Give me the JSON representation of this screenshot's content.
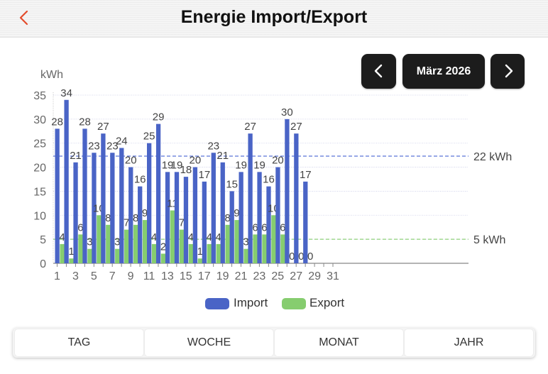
{
  "header": {
    "title": "Energie Import/Export"
  },
  "nav": {
    "month": "März 2026"
  },
  "colors": {
    "import": "#4a64c6",
    "export": "#86cd6f",
    "accent": "#e34c2c",
    "import_ref": "#5b74d6",
    "export_ref": "#8dd07a"
  },
  "legend": {
    "import_label": "Import",
    "export_label": "Export"
  },
  "tabs": [
    "TAG",
    "WOCHE",
    "MONAT",
    "JAHR"
  ],
  "chart_data": {
    "type": "bar",
    "ylabel": "kWh",
    "ylim": [
      0,
      35
    ],
    "yticks": [
      0,
      5,
      10,
      15,
      20,
      25,
      30,
      35
    ],
    "xlim": [
      1,
      31
    ],
    "xticks": [
      1,
      3,
      5,
      7,
      9,
      11,
      13,
      15,
      17,
      19,
      21,
      23,
      25,
      27,
      29,
      31
    ],
    "grid": true,
    "days": [
      1,
      2,
      3,
      4,
      5,
      6,
      7,
      8,
      9,
      10,
      11,
      12,
      13,
      14,
      15,
      16,
      17,
      18,
      19,
      20,
      21,
      22,
      23,
      24,
      25,
      26,
      27,
      28
    ],
    "series": [
      {
        "name": "Import",
        "values": [
          28,
          34,
          21,
          28,
          23,
          27,
          23,
          24,
          20,
          16,
          25,
          29,
          19,
          19,
          18,
          20,
          17,
          23,
          21,
          15,
          19,
          27,
          19,
          16,
          20,
          30,
          27,
          17
        ]
      },
      {
        "name": "Export",
        "values": [
          4,
          1,
          6,
          3,
          10,
          8,
          3,
          7,
          8,
          9,
          4,
          2,
          11,
          7,
          4,
          1,
          4,
          4,
          8,
          9,
          3,
          6,
          6,
          10,
          6,
          0,
          0,
          0
        ]
      }
    ],
    "reference_lines": [
      {
        "series": "Import",
        "value": 22.3,
        "label": "22 kWh"
      },
      {
        "series": "Export",
        "value": 5,
        "label": "5 kWh"
      }
    ]
  }
}
